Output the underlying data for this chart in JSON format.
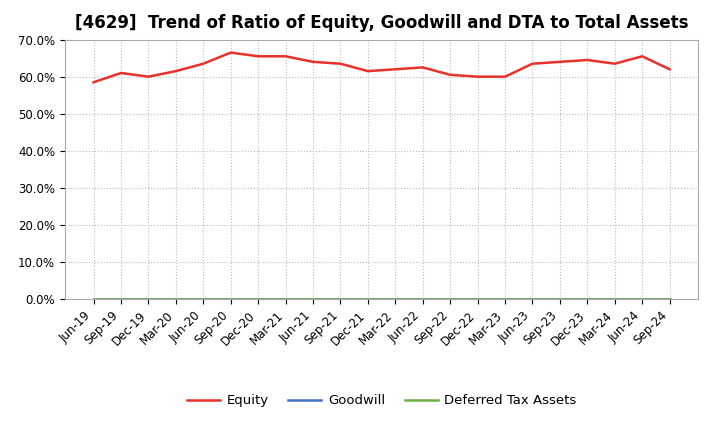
{
  "title": "[4629]  Trend of Ratio of Equity, Goodwill and DTA to Total Assets",
  "x_labels": [
    "Jun-19",
    "Sep-19",
    "Dec-19",
    "Mar-20",
    "Jun-20",
    "Sep-20",
    "Dec-20",
    "Mar-21",
    "Jun-21",
    "Sep-21",
    "Dec-21",
    "Mar-22",
    "Jun-22",
    "Sep-22",
    "Dec-22",
    "Mar-23",
    "Jun-23",
    "Sep-23",
    "Dec-23",
    "Mar-24",
    "Jun-24",
    "Sep-24"
  ],
  "equity": [
    58.5,
    61.0,
    60.0,
    61.5,
    63.5,
    66.5,
    65.5,
    65.5,
    64.0,
    63.5,
    61.5,
    62.0,
    62.5,
    60.5,
    60.0,
    60.0,
    63.5,
    64.0,
    64.5,
    63.5,
    65.5,
    62.0
  ],
  "goodwill": [
    0,
    0,
    0,
    0,
    0,
    0,
    0,
    0,
    0,
    0,
    0,
    0,
    0,
    0,
    0,
    0,
    0,
    0,
    0,
    0,
    0,
    0
  ],
  "dta": [
    0,
    0,
    0,
    0,
    0,
    0,
    0,
    0,
    0,
    0,
    0,
    0,
    0,
    0,
    0,
    0,
    0,
    0,
    0,
    0,
    0,
    0
  ],
  "equity_color": "#e8312a",
  "goodwill_color": "#4472c4",
  "dta_color": "#70ad47",
  "ylim": [
    0,
    70
  ],
  "yticks": [
    0,
    10,
    20,
    30,
    40,
    50,
    60,
    70
  ],
  "ytick_labels": [
    "0.0%",
    "10.0%",
    "20.0%",
    "30.0%",
    "40.0%",
    "50.0%",
    "60.0%",
    "70.0%"
  ],
  "background_color": "#ffffff",
  "plot_bg_color": "#ffffff",
  "grid_color": "#bbbbbb",
  "title_fontsize": 12,
  "tick_fontsize": 8.5,
  "legend_fontsize": 9.5
}
